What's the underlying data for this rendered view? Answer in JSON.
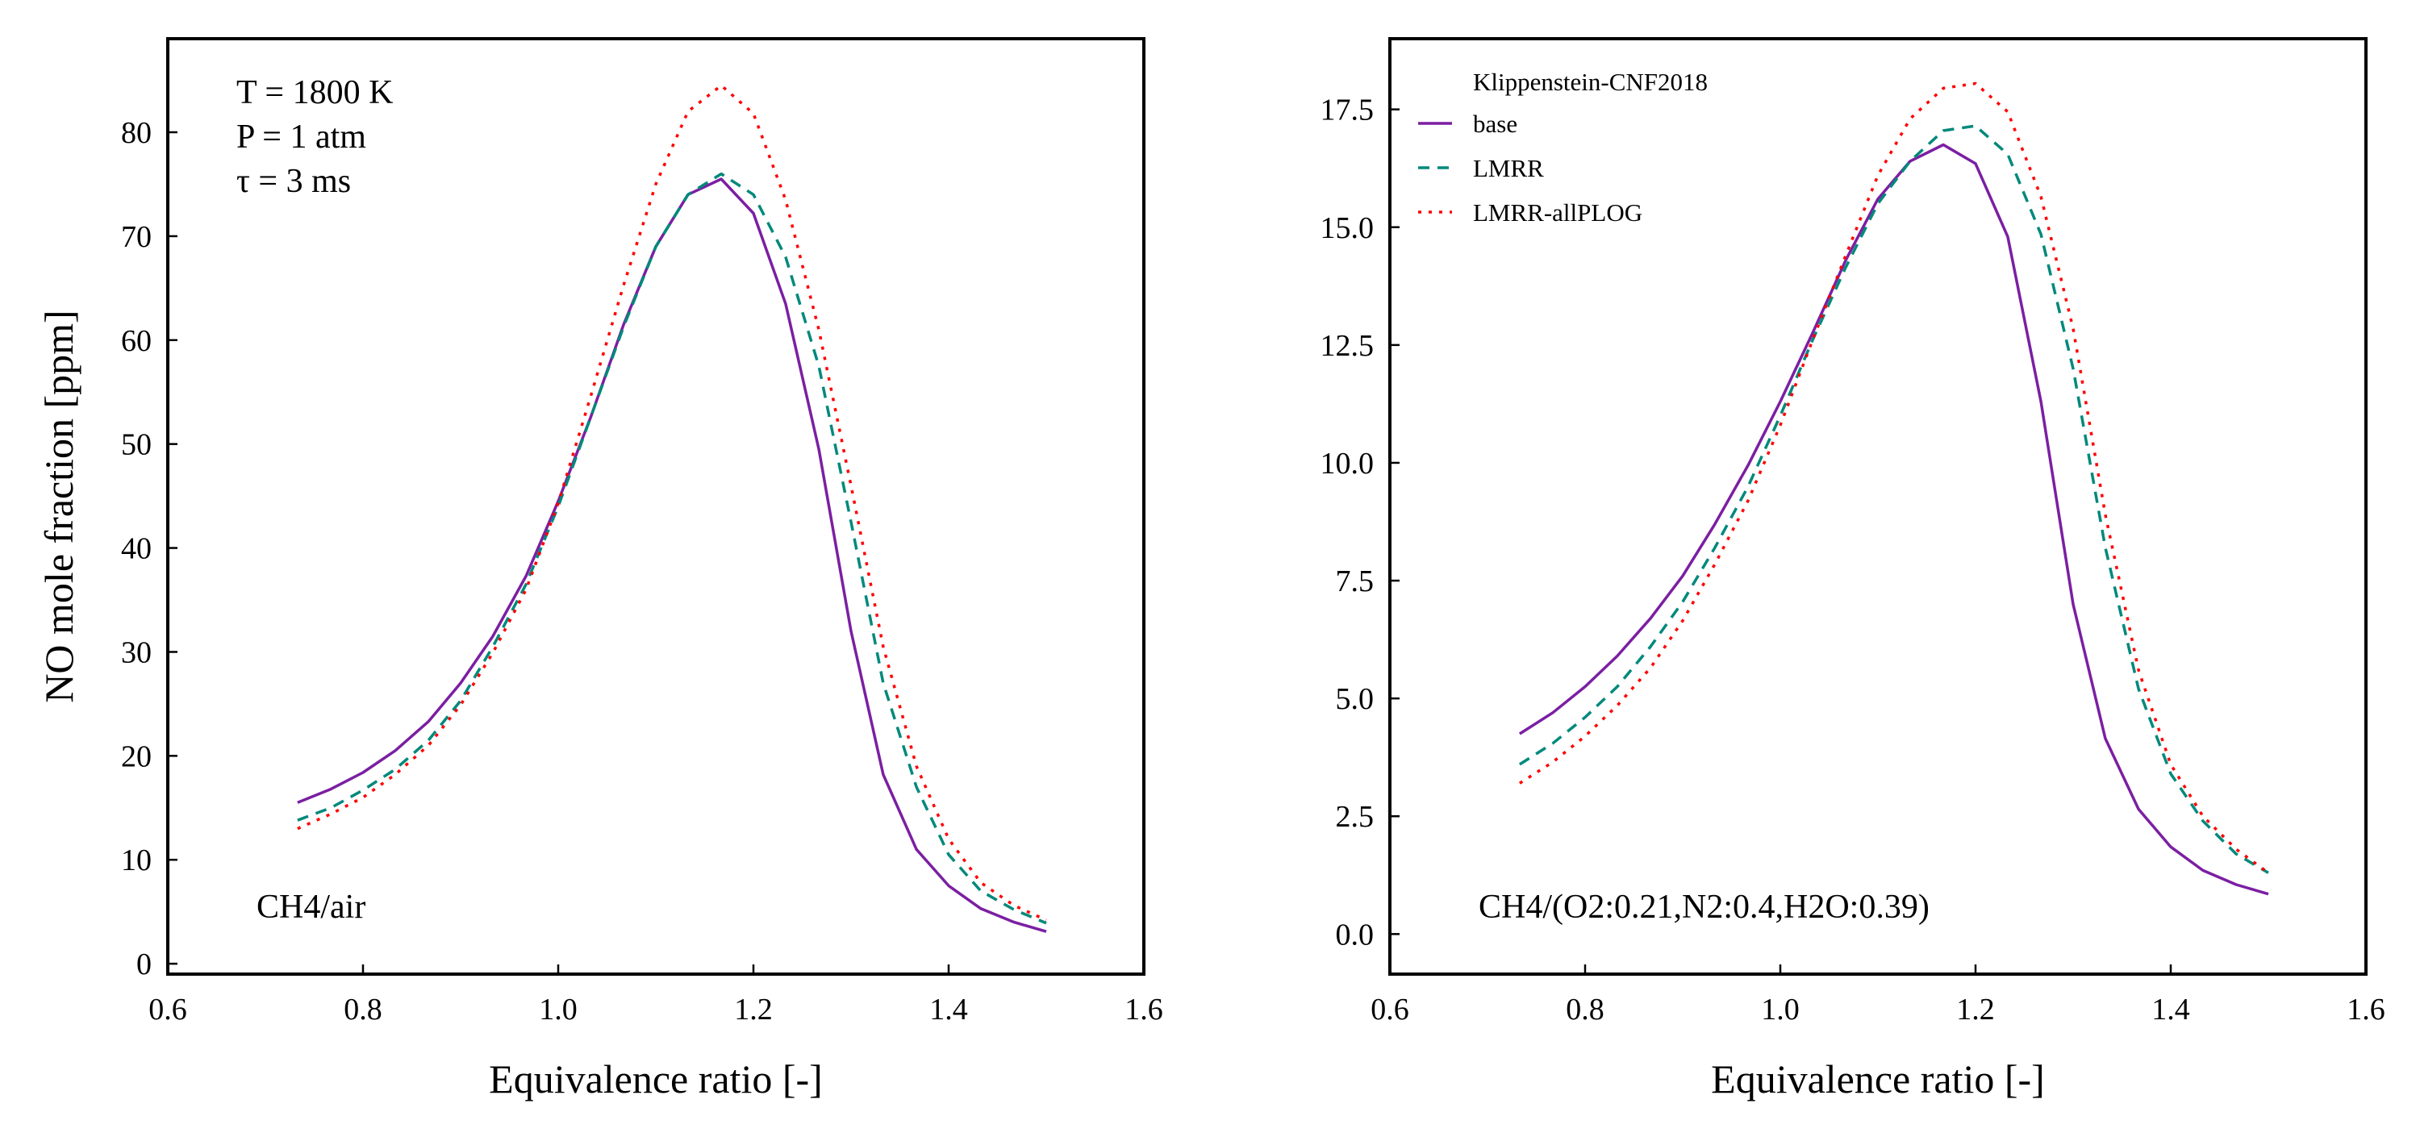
{
  "figure": {
    "background": "#ffffff"
  },
  "series_style": [
    {
      "key": "base",
      "color": "#7b1fa2",
      "dash": ""
    },
    {
      "key": "LMRR",
      "color": "#00897b",
      "dash": "14,10"
    },
    {
      "key": "LMRR-allPLOG",
      "color": "#ff0000",
      "dash": "4,9"
    }
  ],
  "legend": {
    "title": "Klippenstein-CNF2018",
    "entries": [
      "base",
      "LMRR",
      "LMRR-allPLOG"
    ],
    "placement": "top-left"
  },
  "chart_data": [
    {
      "type": "line",
      "xlabel": "Equivalence ratio [-]",
      "ylabel": "NO mole fraction [ppm]",
      "xlim": [
        0.6,
        1.6
      ],
      "ylim": [
        -1,
        89
      ],
      "xticks": [
        0.6,
        0.8,
        1.0,
        1.2,
        1.4,
        1.6
      ],
      "xtick_labels": [
        "0.6",
        "0.8",
        "1.0",
        "1.2",
        "1.4",
        "1.6"
      ],
      "yticks": [
        0,
        10,
        20,
        30,
        40,
        50,
        60,
        70,
        80
      ],
      "ytick_labels": [
        "0",
        "10",
        "20",
        "30",
        "40",
        "50",
        "60",
        "70",
        "80"
      ],
      "annotations": [
        "T = 1800 K",
        "P = 1 atm",
        "τ = 3 ms",
        "CH4/air"
      ],
      "grid": false,
      "x": [
        0.733,
        0.767,
        0.8,
        0.833,
        0.867,
        0.9,
        0.933,
        0.967,
        1.0,
        1.033,
        1.067,
        1.1,
        1.133,
        1.167,
        1.2,
        1.233,
        1.267,
        1.3,
        1.333,
        1.367,
        1.4,
        1.433,
        1.467,
        1.5
      ],
      "series": [
        {
          "name": "base",
          "values": [
            15.5,
            16.8,
            18.4,
            20.5,
            23.3,
            27.0,
            31.5,
            37.3,
            44.5,
            52.5,
            61.5,
            69.0,
            74.0,
            75.5,
            72.2,
            63.5,
            49.5,
            32.0,
            18.2,
            11.0,
            7.5,
            5.3,
            4.0,
            3.1
          ]
        },
        {
          "name": "LMRR",
          "values": [
            13.8,
            15.0,
            16.7,
            18.7,
            21.5,
            25.3,
            30.5,
            36.5,
            44.0,
            52.5,
            61.3,
            69.0,
            74.0,
            76.0,
            74.0,
            68.0,
            57.5,
            42.5,
            27.0,
            17.0,
            10.5,
            7.0,
            5.2,
            3.9
          ]
        },
        {
          "name": "LMRR-allPLOG",
          "values": [
            13.0,
            14.4,
            16.0,
            18.2,
            21.0,
            24.9,
            29.9,
            36.0,
            44.3,
            54.5,
            65.3,
            75.0,
            82.0,
            84.5,
            81.8,
            73.5,
            61.0,
            46.0,
            30.5,
            19.0,
            12.0,
            7.8,
            5.6,
            4.2
          ]
        }
      ]
    },
    {
      "type": "line",
      "xlabel": "Equivalence ratio [-]",
      "ylabel": "",
      "xlim": [
        0.6,
        1.6
      ],
      "ylim": [
        -0.85,
        19.0
      ],
      "xticks": [
        0.6,
        0.8,
        1.0,
        1.2,
        1.4,
        1.6
      ],
      "xtick_labels": [
        "0.6",
        "0.8",
        "1.0",
        "1.2",
        "1.4",
        "1.6"
      ],
      "yticks": [
        0,
        2.5,
        5,
        7.5,
        10,
        12.5,
        15,
        17.5
      ],
      "ytick_labels": [
        "0.0",
        "2.5",
        "5.0",
        "7.5",
        "10.0",
        "12.5",
        "15.0",
        "17.5"
      ],
      "annotations": [
        "CH4/(O2:0.21,N2:0.4,H2O:0.39)"
      ],
      "grid": false,
      "x": [
        0.733,
        0.767,
        0.8,
        0.833,
        0.867,
        0.9,
        0.933,
        0.967,
        1.0,
        1.033,
        1.067,
        1.1,
        1.133,
        1.167,
        1.2,
        1.233,
        1.267,
        1.3,
        1.333,
        1.367,
        1.4,
        1.433,
        1.467,
        1.5
      ],
      "series": [
        {
          "name": "base",
          "values": [
            4.25,
            4.7,
            5.25,
            5.9,
            6.7,
            7.6,
            8.7,
            9.95,
            11.3,
            12.75,
            14.3,
            15.6,
            16.4,
            16.75,
            16.35,
            14.8,
            11.3,
            7.0,
            4.15,
            2.65,
            1.85,
            1.35,
            1.05,
            0.85
          ]
        },
        {
          "name": "LMRR",
          "values": [
            3.6,
            4.05,
            4.6,
            5.25,
            6.1,
            7.05,
            8.2,
            9.5,
            11.0,
            12.6,
            14.15,
            15.5,
            16.4,
            17.05,
            17.15,
            16.55,
            14.85,
            12.0,
            8.2,
            5.2,
            3.4,
            2.4,
            1.7,
            1.3
          ]
        },
        {
          "name": "LMRR-allPLOG",
          "values": [
            3.2,
            3.65,
            4.2,
            4.85,
            5.65,
            6.65,
            7.85,
            9.2,
            10.8,
            12.6,
            14.4,
            16.1,
            17.3,
            17.95,
            18.05,
            17.45,
            15.65,
            12.85,
            8.9,
            5.6,
            3.6,
            2.5,
            1.8,
            1.3
          ]
        }
      ]
    }
  ]
}
